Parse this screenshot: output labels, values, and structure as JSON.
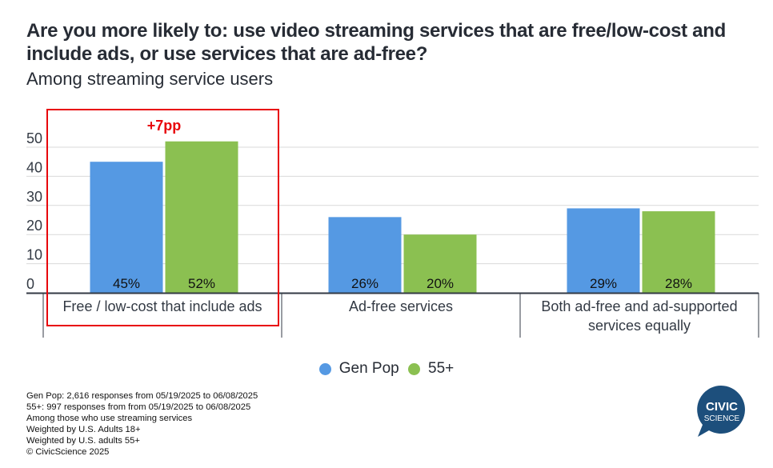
{
  "title": "Are you more likely to: use video streaming services that are free/low-cost and include ads, or use services that are ad-free?",
  "subtitle": "Among streaming service users",
  "annotation": {
    "text": "+7pp",
    "color": "#e8050b"
  },
  "colors": {
    "gen_pop": "#5599e3",
    "age_55_plus": "#8bc051",
    "highlight_box": "#e8050b",
    "grid": "#d9d9d9",
    "axis": "#333a44"
  },
  "chart_data": {
    "type": "bar",
    "title": "Are you more likely to: use video streaming services that are free/low-cost and include ads, or use services that are ad-free?",
    "subtitle": "Among streaming service users",
    "categories": [
      "Free / low-cost that include ads",
      "Ad-free services",
      "Both ad-free and ad-supported services equally"
    ],
    "category_lines": [
      [
        "Free / low-cost that include ads"
      ],
      [
        "Ad-free services"
      ],
      [
        "Both ad-free and ad-supported",
        "services equally"
      ]
    ],
    "series": [
      {
        "name": "Gen Pop",
        "values": [
          45,
          26,
          29
        ],
        "labels": [
          "45%",
          "26%",
          "29%"
        ]
      },
      {
        "name": "55+",
        "values": [
          52,
          20,
          28
        ],
        "labels": [
          "52%",
          "20%",
          "28%"
        ]
      }
    ],
    "yticks": [
      "0",
      "10",
      "20",
      "30",
      "40",
      "50"
    ],
    "ytick_values": [
      0,
      10,
      20,
      30,
      40,
      50
    ],
    "ylim": [
      0,
      55
    ],
    "xlabel": "",
    "ylabel": "",
    "grid": true,
    "legend": "bottom-center",
    "highlight": {
      "category": "Free / low-cost that include ads",
      "label": "+7pp"
    }
  },
  "legend": [
    {
      "label": "Gen Pop",
      "color": "#5599e3"
    },
    {
      "label": "55+",
      "color": "#8bc051"
    }
  ],
  "notes": [
    "Gen Pop: 2,616 responses from 05/19/2025 to 06/08/2025",
    "55+: 997 responses from from 05/19/2025 to 06/08/2025",
    "Among those who use streaming services",
    "Weighted by U.S. Adults 18+",
    "Weighted by U.S. adults 55+",
    "© CivicScience 2025"
  ],
  "logo": {
    "line1": "CIVIC",
    "line2": "SCIENCE",
    "color": "#1d4f7c"
  }
}
